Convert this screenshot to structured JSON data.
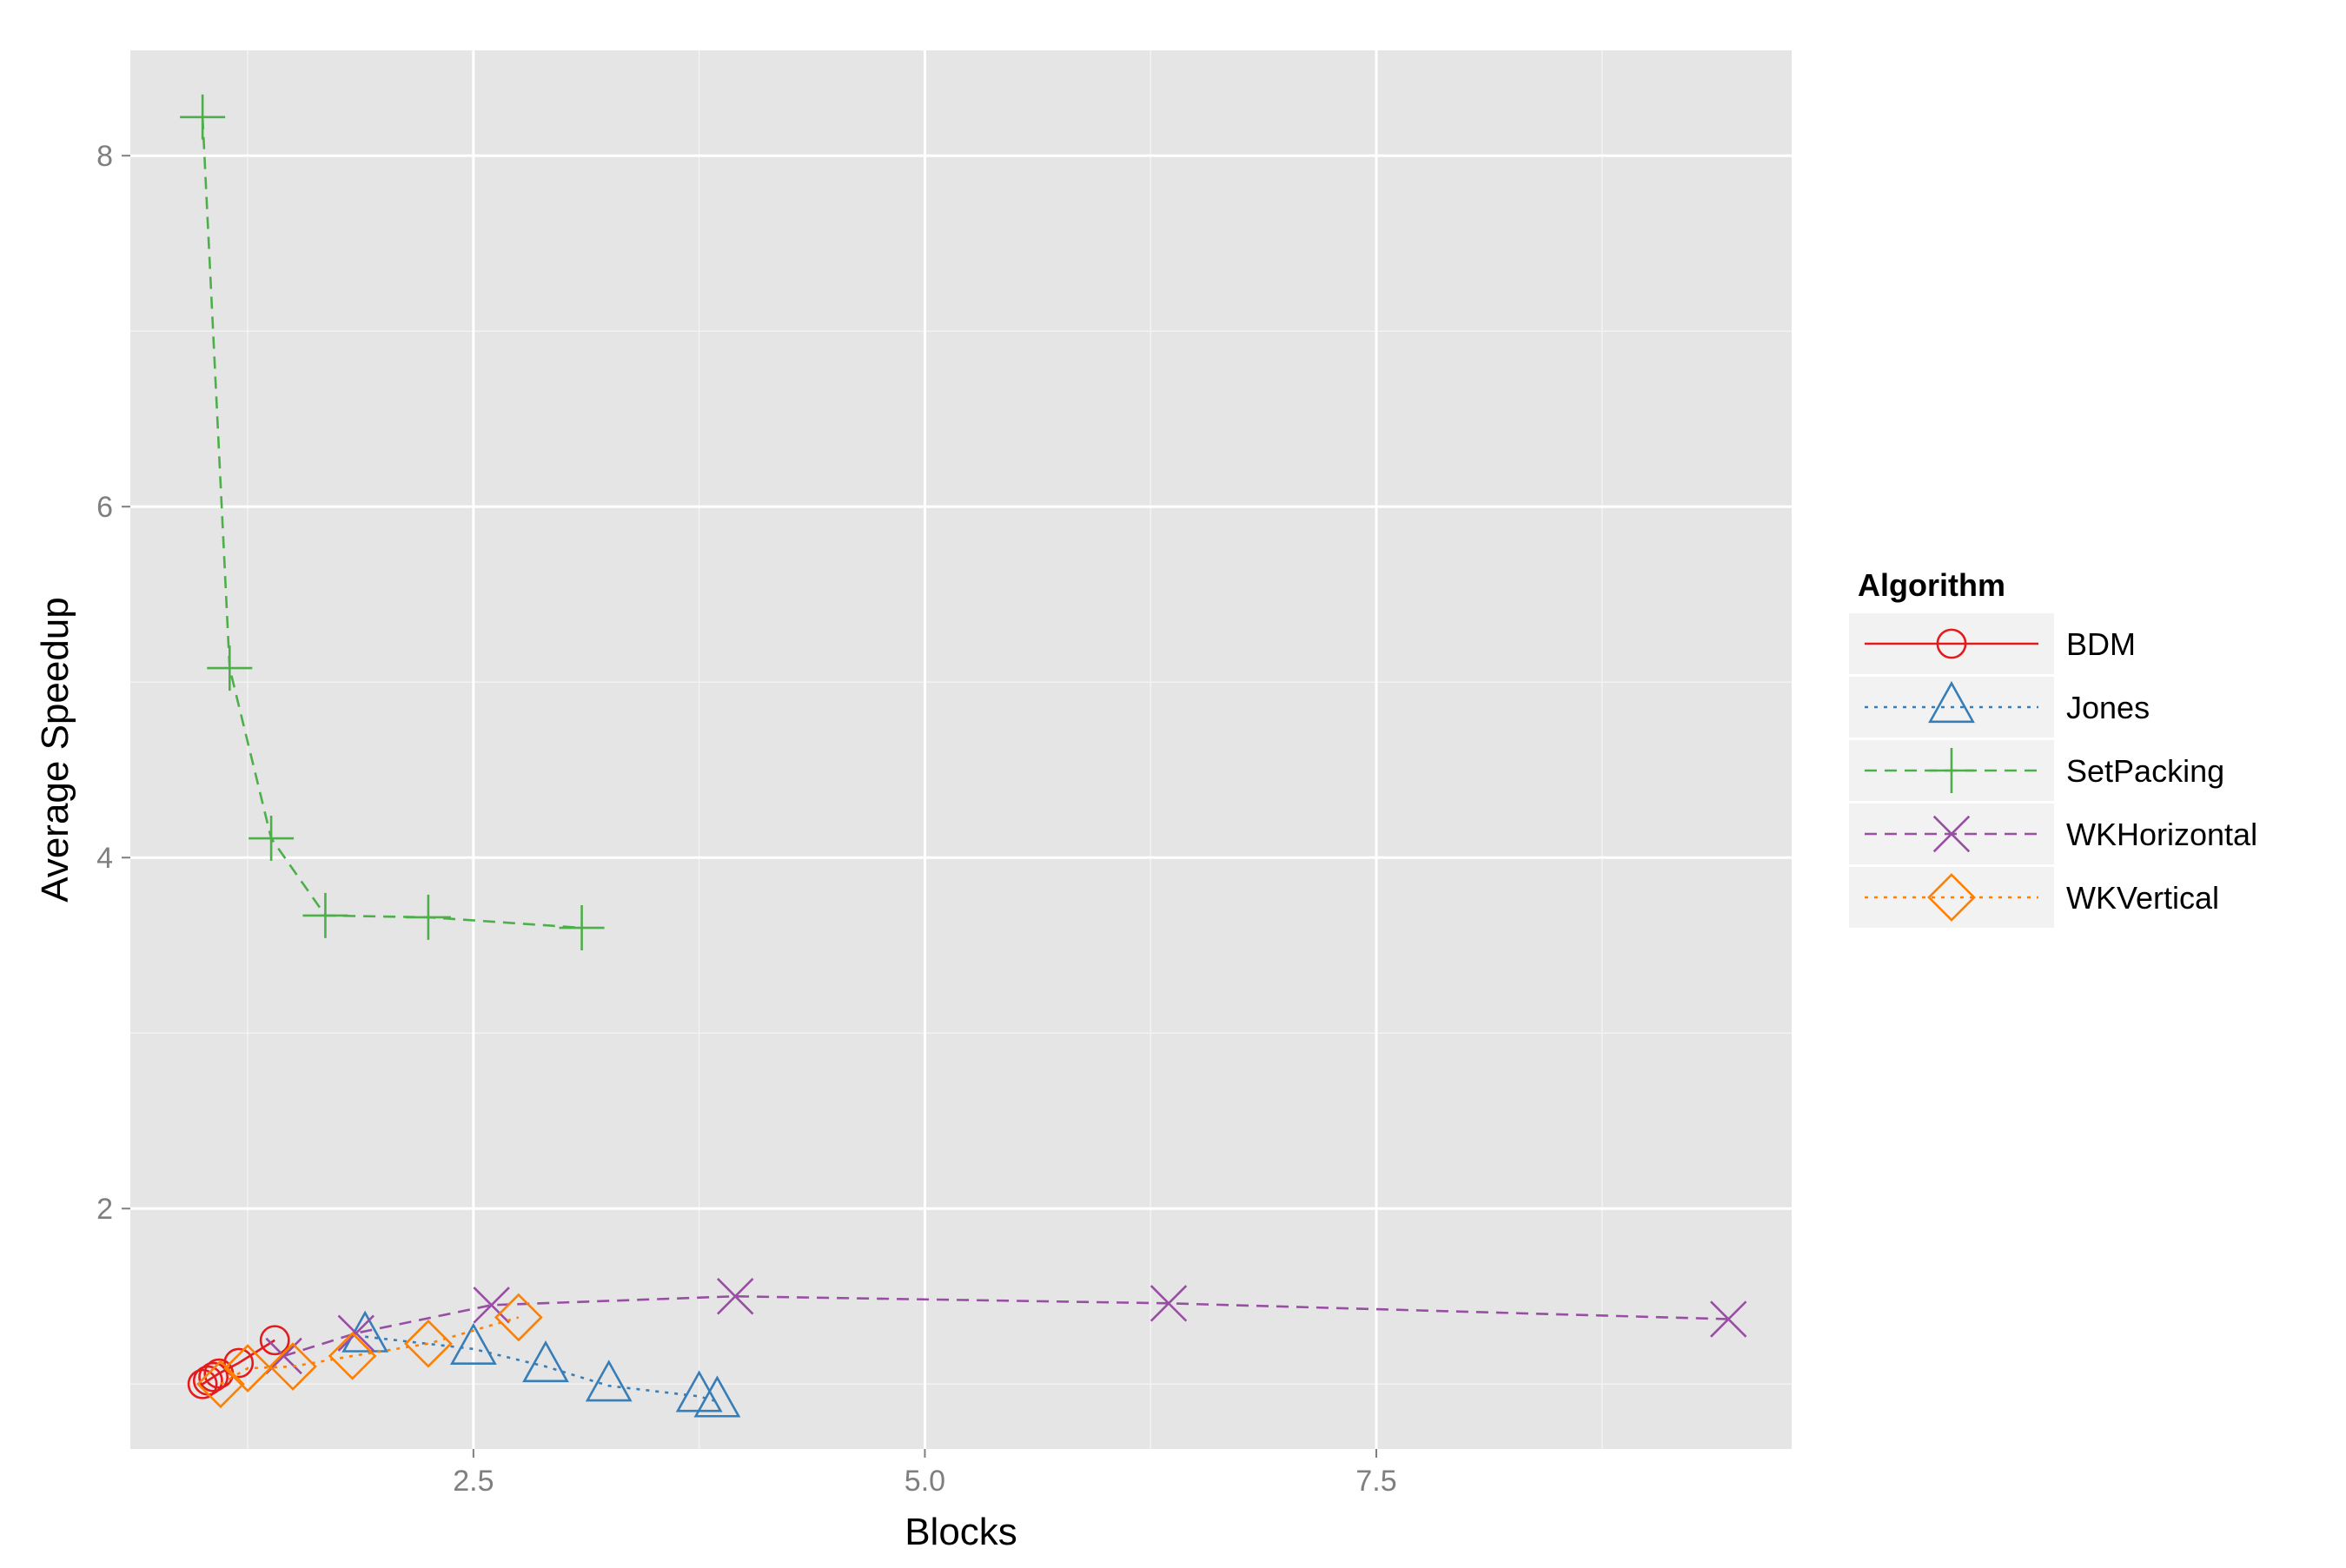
{
  "chart_data": {
    "type": "line",
    "title": "",
    "xlabel": "Blocks",
    "ylabel": "Average Speedup",
    "xlim": [
      0.6,
      9.8
    ],
    "ylim": [
      0.63,
      8.6
    ],
    "xticks": [
      2.5,
      5.0,
      7.5
    ],
    "xtick_labels": [
      "2.5",
      "5.0",
      "7.5"
    ],
    "yticks": [
      2,
      4,
      6,
      8
    ],
    "ytick_labels": [
      "2",
      "4",
      "6",
      "8"
    ],
    "grid": true,
    "legend": {
      "title": "Algorithm",
      "position": "right"
    },
    "series": [
      {
        "name": "BDM",
        "color": "#e41a1c",
        "line_style": "solid",
        "marker": "circle",
        "points": [
          [
            1.0,
            1.0
          ],
          [
            1.03,
            1.02
          ],
          [
            1.06,
            1.04
          ],
          [
            1.09,
            1.06
          ],
          [
            1.2,
            1.12
          ],
          [
            1.4,
            1.25
          ]
        ]
      },
      {
        "name": "Jones",
        "color": "#377eb8",
        "line_style": "dotted",
        "marker": "triangle",
        "points": [
          [
            1.9,
            1.27
          ],
          [
            2.5,
            1.2
          ],
          [
            2.9,
            1.1
          ],
          [
            3.25,
            0.99
          ],
          [
            3.75,
            0.93
          ],
          [
            3.85,
            0.9
          ]
        ]
      },
      {
        "name": "SetPacking",
        "color": "#4daf4a",
        "line_style": "dashed",
        "marker": "plus",
        "points": [
          [
            1.0,
            8.22
          ],
          [
            1.15,
            5.08
          ],
          [
            1.38,
            4.11
          ],
          [
            1.68,
            3.67
          ],
          [
            2.25,
            3.66
          ],
          [
            3.1,
            3.6
          ]
        ]
      },
      {
        "name": "WKHorizontal",
        "color": "#984ea3",
        "line_style": "dashed",
        "marker": "cross",
        "points": [
          [
            1.45,
            1.16
          ],
          [
            1.85,
            1.29
          ],
          [
            2.6,
            1.45
          ],
          [
            3.95,
            1.5
          ],
          [
            6.35,
            1.46
          ],
          [
            9.45,
            1.37
          ]
        ]
      },
      {
        "name": "WKVertical",
        "color": "#ff7f00",
        "line_style": "dotted",
        "marker": "diamond",
        "points": [
          [
            1.1,
            1.0
          ],
          [
            1.25,
            1.09
          ],
          [
            1.5,
            1.1
          ],
          [
            1.83,
            1.16
          ],
          [
            2.25,
            1.23
          ],
          [
            2.75,
            1.38
          ]
        ]
      }
    ]
  }
}
